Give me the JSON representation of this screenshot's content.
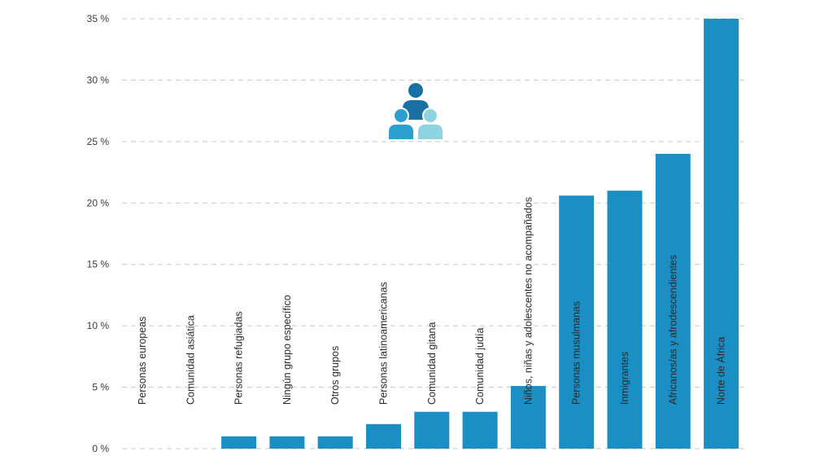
{
  "chart_data": {
    "type": "bar",
    "title": "",
    "xlabel": "",
    "ylabel": "",
    "ylim": [
      0,
      35
    ],
    "y_ticks": [
      "0 %",
      "5 %",
      "10 %",
      "15 %",
      "20 %",
      "25 %",
      "30 %",
      "35 %"
    ],
    "grid": "horizontal dashed",
    "categories": [
      "Personas europeas",
      "Comunidad asiática",
      "Personas refugiadas",
      "Ningún grupo específico",
      "Otros grupos",
      "Personas latinoamericanas",
      "Comunidad gitana",
      "Comunidad judía",
      "Niños, niñas y adolescentes no acompañados",
      "Personas musulmanas",
      "Inmigrantes",
      "Africanos/as y afrodescendientes",
      "Norte de África"
    ],
    "values": [
      0,
      0,
      1,
      1,
      1,
      2,
      3,
      3,
      5.1,
      20.6,
      21,
      24,
      35
    ],
    "bar_color": "#1b8fc4",
    "icon": "people-group-icon",
    "icon_colors": [
      "#1a6fa3",
      "#2a9fd0",
      "#8dd3e0"
    ]
  }
}
